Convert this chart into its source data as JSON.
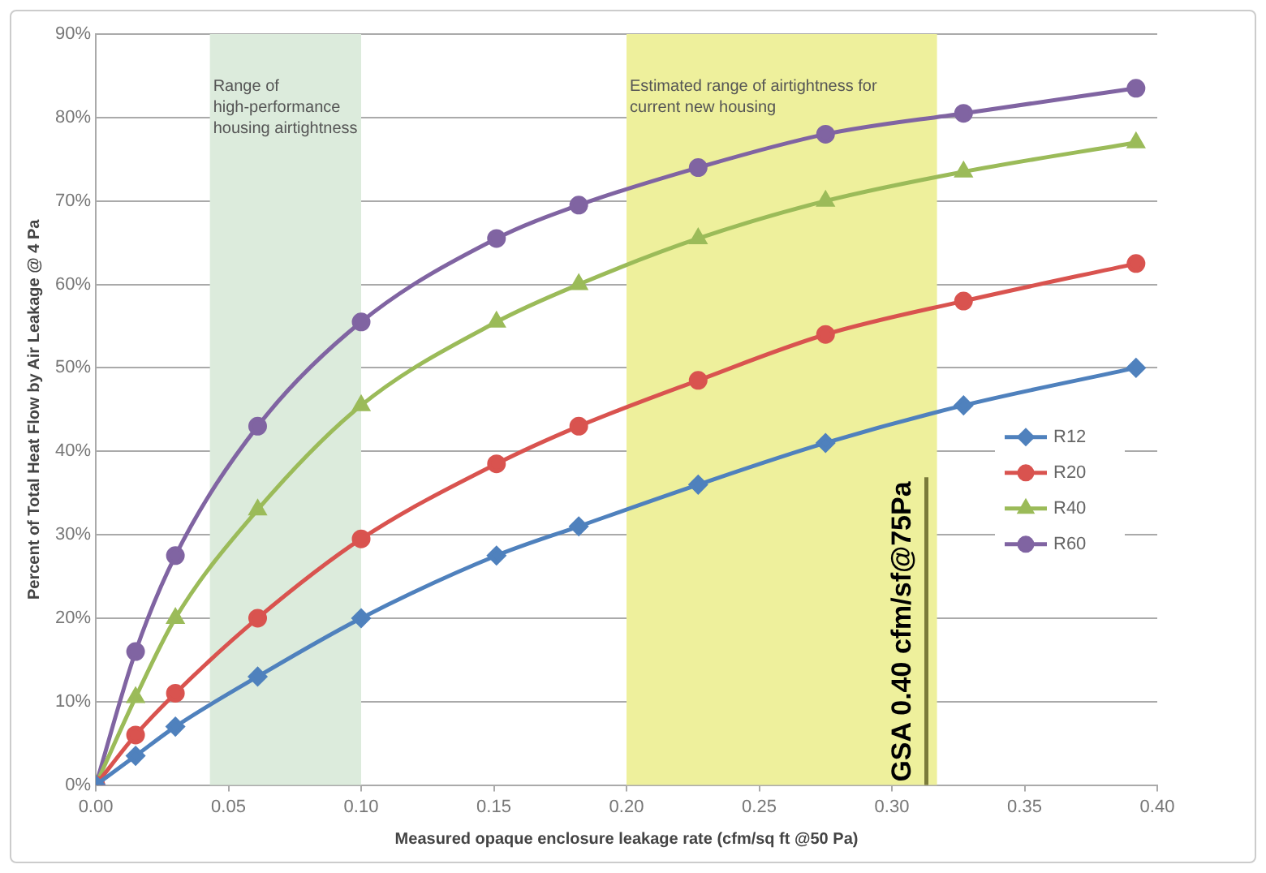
{
  "chart_data": {
    "type": "line",
    "xlabel": "Measured opaque enclosure leakage rate (cfm/sq ft @50 Pa)",
    "ylabel": "Percent of Total Heat Flow by Air Leakage @ 4 Pa",
    "x": [
      0,
      0.015,
      0.03,
      0.061,
      0.1,
      0.151,
      0.182,
      0.227,
      0.275,
      0.327,
      0.392
    ],
    "series": [
      {
        "name": "R12",
        "color": "#4f81bd",
        "marker": "diamond",
        "values": [
          0,
          3.5,
          7,
          13,
          20,
          27.5,
          31,
          36,
          41,
          45.5,
          50
        ]
      },
      {
        "name": "R20",
        "color": "#d9534f",
        "marker": "circle",
        "values": [
          0,
          6,
          11,
          20,
          29.5,
          38.5,
          43,
          48.5,
          54,
          58,
          62.5
        ]
      },
      {
        "name": "R40",
        "color": "#9bbb59",
        "marker": "triangle",
        "values": [
          0,
          10.5,
          20,
          33,
          45.5,
          55.5,
          60,
          65.5,
          70,
          73.5,
          77
        ]
      },
      {
        "name": "R60",
        "color": "#8064a2",
        "marker": "circle",
        "values": [
          0,
          16,
          27.5,
          43,
          55.5,
          65.5,
          69.5,
          74,
          78,
          80.5,
          83.5
        ]
      }
    ],
    "xlim": [
      0,
      0.4
    ],
    "xticks": [
      {
        "value": 0,
        "label": "0.00"
      },
      {
        "value": 0.05,
        "label": "0.05"
      },
      {
        "value": 0.1,
        "label": "0.10"
      },
      {
        "value": 0.15,
        "label": "0.15"
      },
      {
        "value": 0.2,
        "label": "0.20"
      },
      {
        "value": 0.25,
        "label": "0.25"
      },
      {
        "value": 0.3,
        "label": "0.30"
      },
      {
        "value": 0.35,
        "label": "0.35"
      },
      {
        "value": 0.4,
        "label": "0.40"
      }
    ],
    "ylim": [
      0,
      90
    ],
    "yticks": [
      {
        "value": 0,
        "label": "0%"
      },
      {
        "value": 10,
        "label": "10%"
      },
      {
        "value": 20,
        "label": "20%"
      },
      {
        "value": 30,
        "label": "30%"
      },
      {
        "value": 40,
        "label": "40%"
      },
      {
        "value": 50,
        "label": "50%"
      },
      {
        "value": 60,
        "label": "60%"
      },
      {
        "value": 70,
        "label": "70%"
      },
      {
        "value": 80,
        "label": "80%"
      },
      {
        "value": 90,
        "label": "90%"
      }
    ],
    "bands": [
      {
        "axis": "x",
        "from": 0.043,
        "to": 0.1,
        "label": "Range of high-performance housing airtightness",
        "color": "#dcebdc"
      },
      {
        "axis": "x",
        "from": 0.2,
        "to": 0.317,
        "label": "Estimated range of airtightness for current new housing",
        "color": "#eef09c"
      }
    ],
    "ref_lines": [
      {
        "axis": "x",
        "value": 0.313,
        "label": "GSA 0.40 cfm/sf@75Pa",
        "color": "#7a7a3a"
      }
    ],
    "grid": "y",
    "legend": "right",
    "line_style": "solid"
  }
}
